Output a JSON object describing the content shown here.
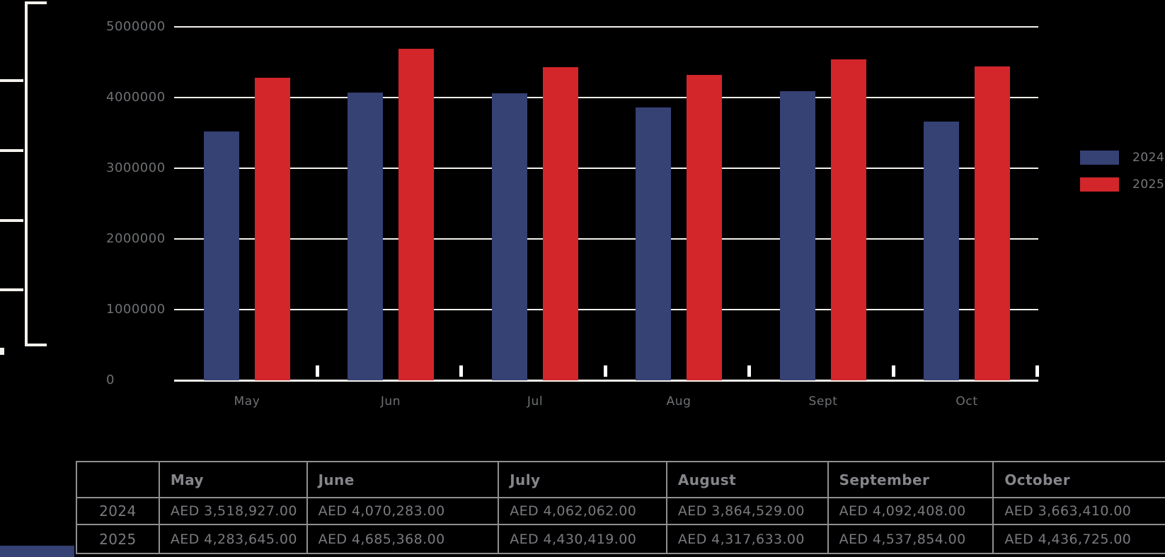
{
  "chart_data": {
    "type": "bar",
    "title": "",
    "xlabel": "",
    "ylabel": "",
    "categories": [
      "May",
      "Jun",
      "Jul",
      "Aug",
      "Sept",
      "Oct"
    ],
    "series": [
      {
        "name": "2024",
        "color": "#364174",
        "values": [
          3518927,
          4070283,
          4062062,
          3864529,
          4092408,
          3663410
        ]
      },
      {
        "name": "2025",
        "color": "#D2262B",
        "values": [
          4283645,
          4685368,
          4430419,
          4317633,
          4537854,
          4436725
        ]
      }
    ],
    "ylim": [
      0,
      5000000
    ],
    "yticks": [
      0,
      1000000,
      2000000,
      3000000,
      4000000,
      5000000
    ],
    "ytick_labels": [
      "0",
      "1000000",
      "2000000",
      "3000000",
      "4000000",
      "5000000"
    ],
    "grid": true,
    "legend_position": "right",
    "group_end_marker_color": "#FFFFFF",
    "currency": "AED"
  },
  "legend": {
    "items": [
      {
        "label": "2024",
        "color": "#364174"
      },
      {
        "label": "2025",
        "color": "#D2262B"
      }
    ]
  },
  "table": {
    "columns": [
      "",
      "May",
      "June",
      "July",
      "August",
      "September",
      "October"
    ],
    "rows": [
      {
        "label": "2024",
        "values": [
          "AED 3,518,927.00",
          "AED 4,070,283.00",
          "AED 4,062,062.00",
          "AED 3,864,529.00",
          "AED 4,092,408.00",
          "AED 3,663,410.00"
        ]
      },
      {
        "label": "2025",
        "values": [
          "AED 4,283,645.00",
          "AED 4,685,368.00",
          "AED 4,430,419.00",
          "AED 4,317,633.00",
          "AED 4,537,854.00",
          "AED 4,436,725.00"
        ]
      }
    ]
  },
  "colors": {
    "background": "#000000",
    "bar_2024": "#364174",
    "bar_2025": "#D2262B",
    "gridline": "#F4F1EC",
    "axis_text": "#6E7073",
    "table_text": "#797A7E",
    "table_border": "#8E8F91"
  }
}
